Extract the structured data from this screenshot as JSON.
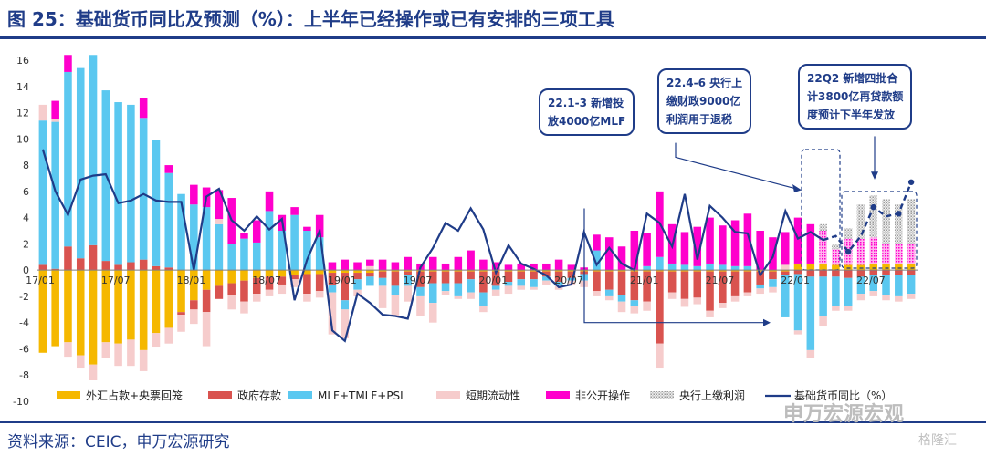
{
  "title": "图 25：基础货币同比及预测（%）：上半年已经操作或已有安排的三项工具",
  "source": "资料来源：CEIC，申万宏源研究",
  "watermark": "申万宏源宏观",
  "watermark2": "格隆汇",
  "colors": {
    "fx": "#f5b800",
    "gov": "#d9534f",
    "mlf": "#5bc8f0",
    "short": "#f6cccc",
    "pub": "#ff00cc",
    "pboc": "#c8c8c8",
    "line": "#1f3c88"
  },
  "annotations": [
    {
      "text": "22.1-3 新增投\n放4000亿MLF"
    },
    {
      "text": "22.4-6 央行上\n缴财政9000亿\n利润用于退税"
    },
    {
      "text": "22Q2 新增四批合\n计3800亿再贷款额\n度预计下半年发放"
    }
  ],
  "chart_data": {
    "type": "bar",
    "stacked": true,
    "ylim": [
      -10,
      16
    ],
    "yticks": [
      -10,
      -8,
      -6,
      -4,
      -2,
      0,
      2,
      4,
      6,
      8,
      10,
      12,
      14,
      16
    ],
    "xtick_labels": [
      "17/01",
      "17/07",
      "18/01",
      "18/07",
      "19/01",
      "19/07",
      "20/01",
      "20/07",
      "21/01",
      "21/07",
      "22/01",
      "22/07"
    ],
    "xtick_index": [
      0,
      6,
      12,
      18,
      24,
      30,
      36,
      42,
      48,
      54,
      60,
      66
    ],
    "n_periods": 70,
    "series": [
      {
        "name": "外汇占款+央票回笼",
        "key": "fx",
        "kind": "bar",
        "values": [
          -6.3,
          -5.8,
          -5.5,
          -6.5,
          -7.2,
          -5.5,
          -5.6,
          -5.3,
          -6.1,
          -4.8,
          -4.4,
          -3.2,
          -2.3,
          -1.5,
          -1.2,
          -1.0,
          -0.8,
          -0.6,
          -0.5,
          -0.5,
          -0.4,
          -0.3,
          -0.3,
          -0.2,
          -0.2,
          -0.2,
          -0.2,
          -0.1,
          -0.1,
          -0.1,
          -0.1,
          -0.1,
          -0.1,
          -0.1,
          -0.1,
          -0.1,
          -0.1,
          -0.1,
          -0.1,
          -0.1,
          -0.1,
          -0.1,
          -0.1,
          -0.1,
          -0.1,
          -0.1,
          -0.1,
          -0.1,
          -0.1,
          -0.1,
          -0.1,
          -0.1,
          -0.1,
          -0.1,
          -0.1,
          -0.1,
          -0.1,
          -0.1,
          -0.1,
          -0.1,
          0.5,
          0.5,
          0.5,
          0.4,
          0.4,
          0.4,
          0.5,
          0.5,
          0.5,
          0.5
        ]
      },
      {
        "name": "政府存款",
        "key": "gov",
        "kind": "bar",
        "values": [
          0.4,
          0.1,
          1.8,
          0.9,
          1.9,
          0.7,
          0.4,
          0.6,
          0.8,
          0.3,
          0.2,
          -0.2,
          -0.7,
          -1.7,
          -1.0,
          -0.9,
          -1.6,
          -1.2,
          -1.0,
          -0.6,
          -0.3,
          -1.5,
          -1.3,
          -0.9,
          -2.1,
          -0.5,
          -0.3,
          -0.5,
          -1.1,
          -0.3,
          -1.2,
          -0.9,
          -0.9,
          -0.9,
          -0.6,
          -1.6,
          -1.1,
          -0.8,
          -0.6,
          -0.6,
          -0.4,
          -0.8,
          -0.5,
          -0.2,
          -1.5,
          -1.4,
          -1.8,
          -2.2,
          -2.3,
          -5.5,
          -1.6,
          -2.1,
          -2.0,
          -3.0,
          -2.4,
          -1.9,
          -1.6,
          -1.0,
          -0.6,
          -0.3,
          -0.3,
          -0.5,
          -0.5,
          -0.5,
          -0.6,
          -0.5,
          -0.4,
          -0.4,
          -0.4,
          -0.4
        ]
      },
      {
        "name": "MLF+TMLF+PSL",
        "key": "mlf",
        "kind": "bar",
        "values": [
          11.0,
          11.2,
          13.3,
          14.5,
          14.5,
          13.0,
          12.4,
          12.0,
          10.8,
          9.6,
          7.2,
          5.8,
          5.0,
          4.8,
          3.5,
          2.0,
          2.4,
          2.1,
          4.5,
          3.0,
          4.2,
          3.0,
          2.5,
          -0.6,
          -0.7,
          -0.8,
          -0.7,
          -0.6,
          -0.7,
          -0.8,
          -0.7,
          -1.5,
          -0.6,
          -1.0,
          -1.0,
          -1.0,
          -0.3,
          -0.3,
          -0.5,
          -0.6,
          -0.3,
          -0.3,
          -0.2,
          -0.5,
          1.5,
          -0.5,
          -0.5,
          -0.4,
          0.3,
          1.0,
          0.5,
          0.4,
          0.3,
          0.5,
          0.4,
          0.3,
          0.3,
          -0.3,
          -0.6,
          -3.2,
          -4.3,
          -5.6,
          -3.0,
          -2.2,
          -2.1,
          -1.3,
          -1.2,
          -1.5,
          -1.6,
          -1.4
        ]
      },
      {
        "name": "短期流动性",
        "key": "short",
        "kind": "bar",
        "values": [
          1.2,
          0.2,
          -1.1,
          -1.0,
          -1.2,
          -1.2,
          -1.7,
          -2.0,
          -1.6,
          -1.1,
          -1.2,
          -1.3,
          -1.1,
          -2.6,
          0.4,
          -1.1,
          -0.9,
          -0.6,
          -0.5,
          -0.7,
          -0.6,
          -0.6,
          -0.5,
          -3.2,
          -2.2,
          -0.5,
          0.3,
          -1.7,
          -1.6,
          -1.2,
          -1.5,
          -1.5,
          -0.3,
          -0.2,
          -0.5,
          -0.5,
          -0.5,
          -0.6,
          -0.3,
          -0.2,
          -0.3,
          -0.3,
          -0.3,
          -0.5,
          -0.4,
          -0.3,
          -0.8,
          -0.6,
          -0.7,
          -1.9,
          -0.5,
          -0.6,
          -0.5,
          -0.5,
          -0.4,
          -0.4,
          -0.3,
          -0.4,
          -0.4,
          0.4,
          -0.3,
          -0.6,
          -0.8,
          -0.4,
          -0.4,
          -0.5,
          -0.4,
          -0.4,
          -0.4,
          -0.4
        ]
      },
      {
        "name": "非公开操作",
        "key": "pub",
        "kind": "bar",
        "values": [
          0.0,
          1.4,
          1.3,
          0.0,
          0.0,
          0.0,
          0.0,
          0.0,
          1.5,
          0.0,
          0.6,
          0.0,
          1.5,
          1.5,
          2.2,
          3.5,
          0.4,
          1.7,
          1.5,
          1.2,
          0.6,
          0.3,
          1.7,
          0.6,
          0.8,
          0.6,
          0.5,
          0.8,
          0.6,
          1.0,
          0.5,
          1.0,
          0.5,
          1.0,
          1.5,
          0.8,
          0.6,
          0.4,
          0.5,
          0.5,
          0.5,
          0.8,
          0.4,
          0.2,
          1.2,
          2.5,
          1.8,
          3.0,
          2.5,
          5.0,
          3.0,
          2.5,
          3.0,
          3.5,
          3.0,
          3.5,
          4.0,
          3.0,
          2.5,
          2.5,
          3.5,
          3.0,
          2.5,
          1.2,
          2.0,
          2.0,
          2.0,
          1.5,
          1.5,
          1.5
        ]
      },
      {
        "name": "央行上缴利润",
        "key": "pboc",
        "kind": "bar",
        "values": [
          0,
          0,
          0,
          0,
          0,
          0,
          0,
          0,
          0,
          0,
          0,
          0,
          0,
          0,
          0,
          0,
          0,
          0,
          0,
          0,
          0,
          0,
          0,
          0,
          0,
          0,
          0,
          0,
          0,
          0,
          0,
          0,
          0,
          0,
          0,
          0,
          0,
          0,
          0,
          0,
          0,
          0,
          0,
          0,
          0,
          0,
          0,
          0,
          0,
          0,
          0,
          0,
          0,
          0,
          0,
          0,
          0,
          0,
          0,
          0,
          0,
          0,
          0.5,
          0.4,
          0.8,
          2.6,
          3.2,
          3.4,
          3.0,
          3.4
        ]
      },
      {
        "name": "基础货币同比（%）",
        "key": "line",
        "kind": "line",
        "values": [
          9.2,
          6.0,
          4.2,
          6.9,
          7.2,
          7.3,
          5.1,
          5.3,
          5.8,
          5.3,
          5.2,
          5.2,
          0.0,
          5.6,
          6.2,
          3.8,
          3.0,
          4.1,
          3.1,
          3.9,
          -2.3,
          0.8,
          3.0,
          -4.6,
          -5.4,
          -1.8,
          -2.5,
          -3.4,
          -3.5,
          -3.7,
          0.2,
          1.7,
          3.6,
          3.0,
          4.7,
          3.1,
          -0.2,
          1.9,
          0.5,
          0.1,
          -0.4,
          -1.3,
          -1.1,
          2.9,
          0.4,
          1.7,
          0.5,
          0.0,
          4.3,
          3.6,
          1.8,
          5.8,
          0.8,
          4.9,
          4.0,
          2.9,
          2.8,
          -0.4,
          1.0,
          4.5,
          2.4,
          2.9,
          2.3,
          2.6,
          1.4,
          2.6,
          4.8,
          4.1,
          4.3,
          6.7
        ]
      }
    ],
    "forecast_from_index": 62
  }
}
